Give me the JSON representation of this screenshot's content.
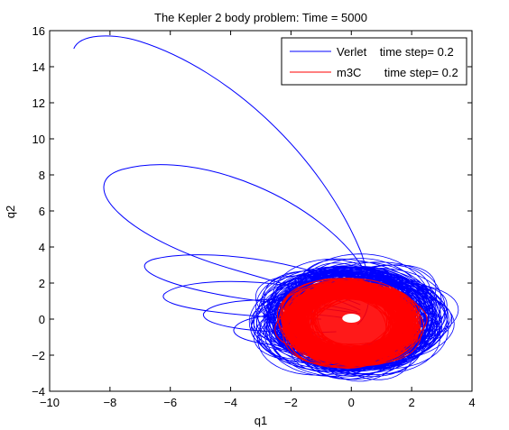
{
  "chart_data": {
    "type": "line",
    "title": "The Kepler 2 body problem:  Time = 5000",
    "xlabel": "q1",
    "ylabel": "q2",
    "xlim": [
      -10,
      4
    ],
    "ylim": [
      -4,
      16
    ],
    "xticks": [
      "−10",
      "−8",
      "−6",
      "−4",
      "−2",
      "0",
      "2",
      "4"
    ],
    "yticks": [
      "−4",
      "−2",
      "0",
      "2",
      "4",
      "6",
      "8",
      "10",
      "12",
      "14",
      "16"
    ],
    "xtick_values": [
      -10,
      -8,
      -6,
      -4,
      -2,
      0,
      2,
      4
    ],
    "ytick_values": [
      -4,
      -2,
      0,
      2,
      4,
      6,
      8,
      10,
      12,
      14,
      16
    ],
    "grid": false,
    "legend_position": "top-right",
    "series": [
      {
        "name": "Verlet    time step= 0.2",
        "color": "#0000ff",
        "description_orbits": [
          {
            "perihelion_x": 0.2,
            "aphelion": [
              -9.2,
              15.0
            ],
            "peak": [
              -8.3,
              15.7
            ]
          },
          {
            "aphelion": [
              -8.4,
              7.4
            ],
            "peak": [
              -7.5,
              8.4
            ]
          },
          {
            "aphelion": [
              -6.8,
              3.2
            ],
            "peak": [
              -6.0,
              3.5
            ]
          },
          {
            "aphelion": [
              -5.9,
              1.5
            ]
          },
          {
            "aphelion": [
              -4.5,
              0.5
            ]
          },
          {
            "aphelion": [
              -3.7,
              -0.5
            ]
          }
        ],
        "core_cloud": {
          "center": [
            0,
            0
          ],
          "x_range": [
            -3.2,
            3.5
          ],
          "y_range": [
            -3.3,
            3.2
          ]
        }
      },
      {
        "name": "m3C       time step= 0.2",
        "color": "#ff0000",
        "core_cloud": {
          "center": [
            0,
            0
          ],
          "x_range": [
            -2.4,
            2.4
          ],
          "y_range": [
            -2.6,
            2.0
          ],
          "hole_radius": [
            0.3,
            0.25
          ]
        }
      }
    ]
  }
}
